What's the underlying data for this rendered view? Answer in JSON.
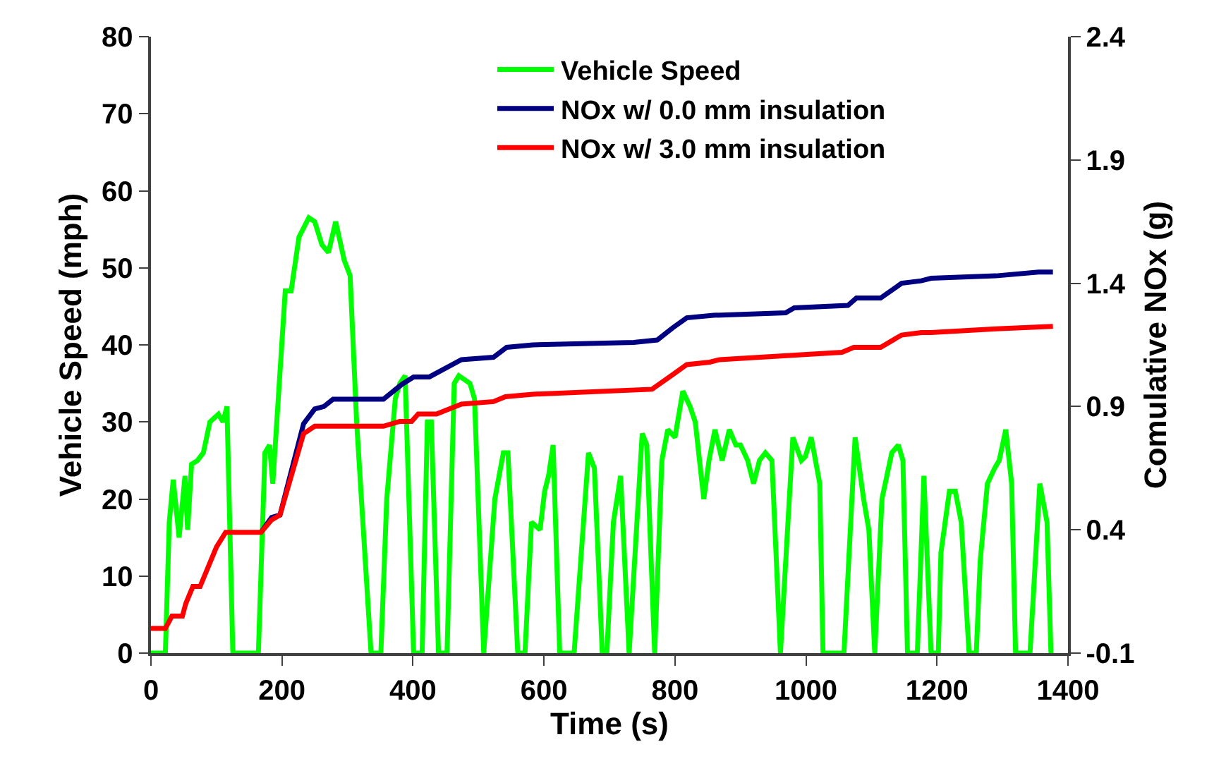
{
  "chart_data": {
    "type": "line",
    "xlabel": "Time (s)",
    "ylabel": "Vehicle Speed (mph)",
    "y2label": "Comulative NOx (g)",
    "xlim": [
      0,
      1400
    ],
    "xticks": [
      0,
      200,
      400,
      600,
      800,
      1000,
      1200,
      1400
    ],
    "ylim": [
      0,
      80
    ],
    "yticks": [
      0,
      10,
      20,
      30,
      40,
      50,
      60,
      70,
      80
    ],
    "y2lim": [
      -0.1,
      2.4
    ],
    "y2ticks": [
      -0.1,
      0.4,
      0.9,
      1.4,
      1.9,
      2.4
    ],
    "legend": "top",
    "marker": "none",
    "line_style": "solid",
    "series": [
      {
        "name": "Vehicle Speed",
        "color": "#00ff00",
        "x": [
          0,
          22,
          28,
          34,
          43,
          52,
          56,
          62,
          71,
          80,
          90,
          103,
          110,
          116,
          125,
          164,
          174,
          181,
          186,
          205,
          214,
          226,
          241,
          250,
          261,
          271,
          282,
          295,
          304,
          314,
          325,
          336,
          351,
          360,
          373,
          380,
          388,
          401,
          414,
          422,
          428,
          439,
          452,
          463,
          470,
          487,
          494,
          508,
          525,
          538,
          545,
          560,
          571,
          581,
          594,
          601,
          607,
          614,
          624,
          646,
          668,
          677,
          689,
          696,
          706,
          717,
          730,
          750,
          757,
          769,
          780,
          789,
          800,
          812,
          823,
          831,
          844,
          852,
          861,
          872,
          883,
          893,
          900,
          911,
          920,
          929,
          938,
          948,
          961,
          980,
          993,
          999,
          1008,
          1021,
          1026,
          1058,
          1075,
          1088,
          1096,
          1105,
          1116,
          1131,
          1141,
          1148,
          1155,
          1170,
          1180,
          1191,
          1202,
          1206,
          1219,
          1228,
          1237,
          1249,
          1260,
          1266,
          1277,
          1288,
          1295,
          1305,
          1314,
          1320,
          1342,
          1357,
          1368,
          1374
        ],
        "values": [
          0,
          0,
          17,
          22.5,
          15,
          23,
          16,
          24.5,
          25,
          26,
          30,
          31,
          30,
          32,
          0,
          0,
          26,
          27,
          22,
          47,
          47,
          54,
          56.5,
          56,
          53,
          52,
          56,
          51,
          49,
          30,
          15,
          0,
          0,
          20,
          33,
          35,
          36,
          0,
          0,
          30,
          30,
          0,
          0,
          35,
          36,
          35,
          33,
          0,
          20,
          26,
          26,
          0,
          0,
          17,
          16,
          21,
          23,
          27,
          0,
          0,
          26,
          24,
          0,
          0,
          17,
          23,
          0,
          28.5,
          27,
          0,
          25,
          29,
          28,
          34,
          32,
          30,
          20,
          25,
          29,
          25,
          29,
          27,
          27,
          25,
          22,
          25,
          26,
          25,
          0,
          28,
          25,
          25.5,
          28,
          22,
          0,
          0,
          28,
          20,
          16,
          0,
          20,
          26,
          27,
          25,
          0,
          0,
          23,
          0,
          0,
          13,
          21,
          21,
          17,
          0,
          0,
          12,
          22,
          24,
          25,
          29,
          22,
          0,
          0,
          22,
          17,
          0
        ]
      },
      {
        "name": "NOx w/ 0.0 mm insulation",
        "color": "#000080",
        "axis": "y2",
        "x": [
          168,
          184,
          197,
          233,
          250,
          264,
          278,
          355,
          383,
          401,
          425,
          474,
          523,
          543,
          583,
          737,
          773,
          797,
          818,
          859,
          969,
          982,
          1064,
          1077,
          1114,
          1146,
          1176,
          1191,
          1290,
          1355,
          1377
        ],
        "values": [
          0.39,
          0.45,
          0.46,
          0.83,
          0.89,
          0.9,
          0.93,
          0.93,
          0.99,
          1.02,
          1.02,
          1.09,
          1.1,
          1.14,
          1.15,
          1.16,
          1.17,
          1.22,
          1.26,
          1.27,
          1.28,
          1.3,
          1.31,
          1.34,
          1.34,
          1.4,
          1.41,
          1.42,
          1.43,
          1.445,
          1.445
        ]
      },
      {
        "name": "NOx w/ 3.0 mm insulation",
        "color": "#ff0000",
        "axis": "y2",
        "x": [
          0,
          22,
          32,
          48,
          53,
          64,
          75,
          100,
          114,
          168,
          184,
          197,
          233,
          250,
          277,
          355,
          380,
          398,
          408,
          436,
          474,
          523,
          541,
          583,
          765,
          797,
          818,
          853,
          868,
          1055,
          1073,
          1114,
          1146,
          1176,
          1191,
          1290,
          1377
        ],
        "values": [
          0,
          0,
          0.05,
          0.05,
          0.1,
          0.17,
          0.17,
          0.33,
          0.39,
          0.39,
          0.44,
          0.46,
          0.79,
          0.82,
          0.82,
          0.82,
          0.84,
          0.84,
          0.87,
          0.87,
          0.91,
          0.92,
          0.94,
          0.95,
          0.97,
          1.03,
          1.07,
          1.08,
          1.09,
          1.12,
          1.14,
          1.14,
          1.19,
          1.2,
          1.2,
          1.215,
          1.225
        ]
      }
    ]
  }
}
